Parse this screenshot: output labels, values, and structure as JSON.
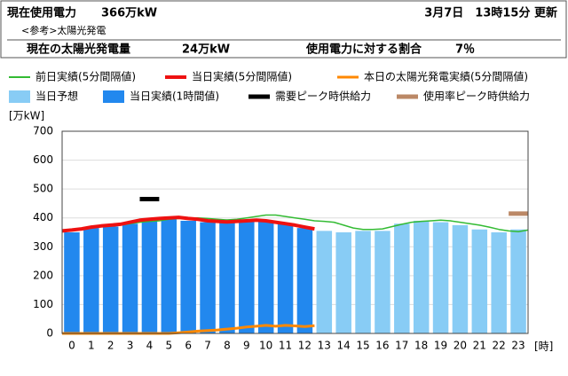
{
  "header": {
    "label": "現在使用電力",
    "value": "366万kW",
    "updated": "3月7日　13時15分 更新",
    "ref": "<参考>太陽光発電",
    "solar_label": "現在の太陽光発電量",
    "solar_value": "24万kW",
    "ratio_label": "使用電力に対する割合",
    "ratio_value": "7％"
  },
  "chart_data": {
    "type": "bar",
    "y_unit": "[万kW]",
    "x_unit": "[時]",
    "categories": [
      "0",
      "1",
      "2",
      "3",
      "4",
      "5",
      "6",
      "7",
      "8",
      "9",
      "10",
      "11",
      "12",
      "13",
      "14",
      "15",
      "16",
      "17",
      "18",
      "19",
      "20",
      "21",
      "22",
      "23"
    ],
    "xlim": [
      0,
      24
    ],
    "ylim": [
      0,
      700
    ],
    "yticks": [
      0,
      100,
      200,
      300,
      400,
      500,
      600,
      700
    ],
    "grid": true,
    "series": [
      {
        "name": "前日実績(5分間隔値)",
        "type": "line",
        "color": "#33bb33",
        "width": 1.5,
        "x": [
          0,
          0.5,
          1,
          1.5,
          2,
          2.5,
          3,
          3.5,
          4,
          4.5,
          5,
          5.5,
          6,
          6.5,
          7,
          7.5,
          8,
          8.5,
          9,
          9.5,
          10,
          10.5,
          11,
          11.5,
          12,
          12.5,
          13,
          13.5,
          14,
          14.5,
          15,
          15.5,
          16,
          16.5,
          17,
          17.5,
          18,
          18.5,
          19,
          19.5,
          20,
          20.5,
          21,
          21.5,
          22,
          22.5,
          23,
          23.5,
          24
        ],
        "values": [
          355,
          355,
          360,
          365,
          370,
          372,
          375,
          380,
          385,
          388,
          390,
          395,
          398,
          400,
          400,
          398,
          395,
          393,
          395,
          400,
          405,
          410,
          410,
          405,
          400,
          395,
          390,
          388,
          385,
          375,
          365,
          360,
          360,
          362,
          370,
          378,
          385,
          388,
          390,
          392,
          390,
          385,
          380,
          375,
          368,
          360,
          355,
          352,
          358
        ]
      },
      {
        "name": "当日実績(5分間隔値)",
        "type": "line",
        "color": "#ee1111",
        "width": 4,
        "x": [
          0,
          0.5,
          1,
          1.5,
          2,
          2.5,
          3,
          3.5,
          4,
          4.5,
          5,
          5.5,
          6,
          6.5,
          7,
          7.5,
          8,
          8.5,
          9,
          9.5,
          10,
          10.5,
          11,
          11.5,
          12,
          12.5,
          13
        ],
        "values": [
          355,
          358,
          362,
          368,
          372,
          375,
          378,
          385,
          392,
          395,
          398,
          400,
          402,
          398,
          395,
          390,
          388,
          386,
          388,
          390,
          392,
          390,
          385,
          380,
          375,
          368,
          362
        ]
      },
      {
        "name": "本日の太陽光発電実績(5分間隔値)",
        "type": "line",
        "color": "#ff8800",
        "width": 3,
        "x": [
          0,
          0.5,
          1,
          1.5,
          2,
          2.5,
          3,
          3.5,
          4,
          4.5,
          5,
          5.5,
          6,
          6.5,
          7,
          7.5,
          8,
          8.5,
          9,
          9.5,
          10,
          10.5,
          11,
          11.5,
          12,
          12.5,
          13
        ],
        "values": [
          0,
          0,
          0,
          0,
          0,
          0,
          0,
          0,
          0,
          0,
          0,
          0,
          2,
          5,
          8,
          10,
          12,
          15,
          18,
          22,
          25,
          28,
          25,
          28,
          26,
          24,
          27
        ]
      },
      {
        "name": "当日予想",
        "type": "bar",
        "color": "#88ccf5",
        "values": [
          null,
          null,
          null,
          null,
          null,
          null,
          null,
          null,
          null,
          null,
          null,
          null,
          null,
          355,
          350,
          355,
          355,
          380,
          390,
          385,
          375,
          360,
          350,
          360
        ]
      },
      {
        "name": "当日実績(1時間値)",
        "type": "bar",
        "color": "#2288ee",
        "values": [
          350,
          365,
          370,
          380,
          390,
          395,
          390,
          385,
          390,
          395,
          390,
          380,
          365,
          null,
          null,
          null,
          null,
          null,
          null,
          null,
          null,
          null,
          null,
          null
        ]
      },
      {
        "name": "需要ピーク時供給力",
        "type": "marker",
        "color": "#000000",
        "values": [
          null,
          null,
          null,
          null,
          465,
          null,
          null,
          null,
          null,
          null,
          null,
          null,
          null,
          null,
          null,
          null,
          null,
          null,
          null,
          null,
          null,
          null,
          null,
          null
        ]
      },
      {
        "name": "使用率ピーク時供給力",
        "type": "marker",
        "color": "#bb8866",
        "values": [
          null,
          null,
          null,
          null,
          null,
          null,
          null,
          null,
          null,
          null,
          null,
          null,
          null,
          null,
          null,
          null,
          null,
          null,
          null,
          null,
          null,
          null,
          null,
          415
        ]
      }
    ]
  }
}
